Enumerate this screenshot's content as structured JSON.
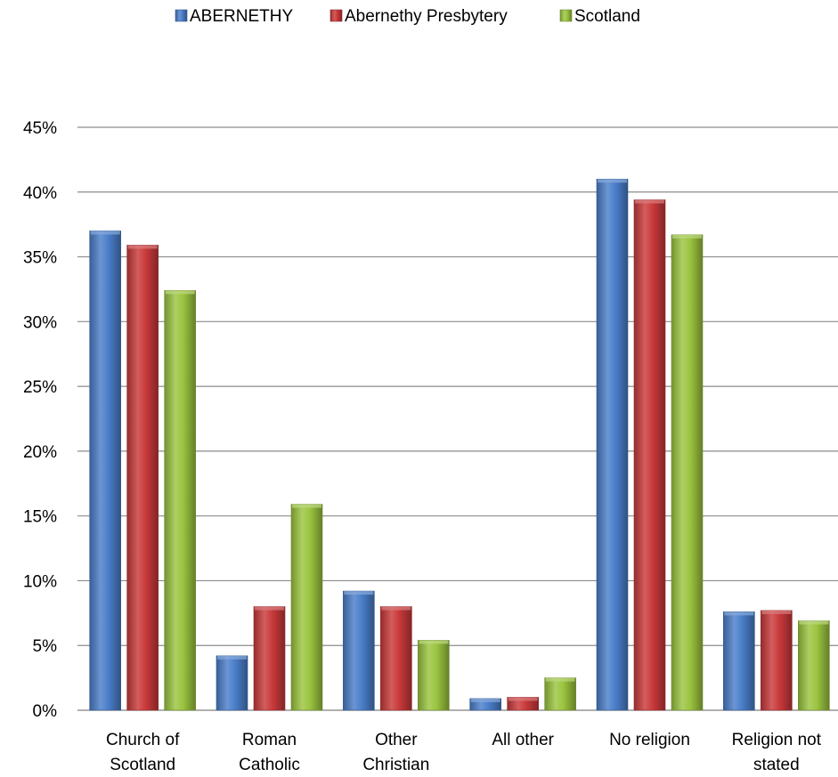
{
  "chart_data": {
    "type": "bar",
    "title": "",
    "xlabel": "",
    "ylabel": "",
    "categories": [
      [
        "Church of",
        "Scotland"
      ],
      [
        "Roman",
        "Catholic"
      ],
      [
        "Other",
        "Christian"
      ],
      [
        "All other"
      ],
      [
        "No religion"
      ],
      [
        "Religion not",
        "stated"
      ]
    ],
    "series": [
      {
        "name": "ABERNETHY",
        "color": "#4A7EC9",
        "values": [
          37.0,
          4.2,
          9.2,
          0.9,
          41.0,
          7.6
        ]
      },
      {
        "name": "Abernethy Presbytery",
        "color": "#C9393A",
        "values": [
          35.9,
          8.0,
          8.0,
          1.0,
          39.4,
          7.7
        ]
      },
      {
        "name": "Scotland",
        "color": "#9BC43F",
        "values": [
          32.4,
          15.9,
          5.4,
          2.5,
          36.7,
          6.9
        ]
      }
    ],
    "ylim": [
      0,
      45
    ],
    "yticks": [
      "0%",
      "5%",
      "10%",
      "15%",
      "20%",
      "25%",
      "30%",
      "35%",
      "40%",
      "45%"
    ],
    "grid": true,
    "legend_position": "top"
  }
}
